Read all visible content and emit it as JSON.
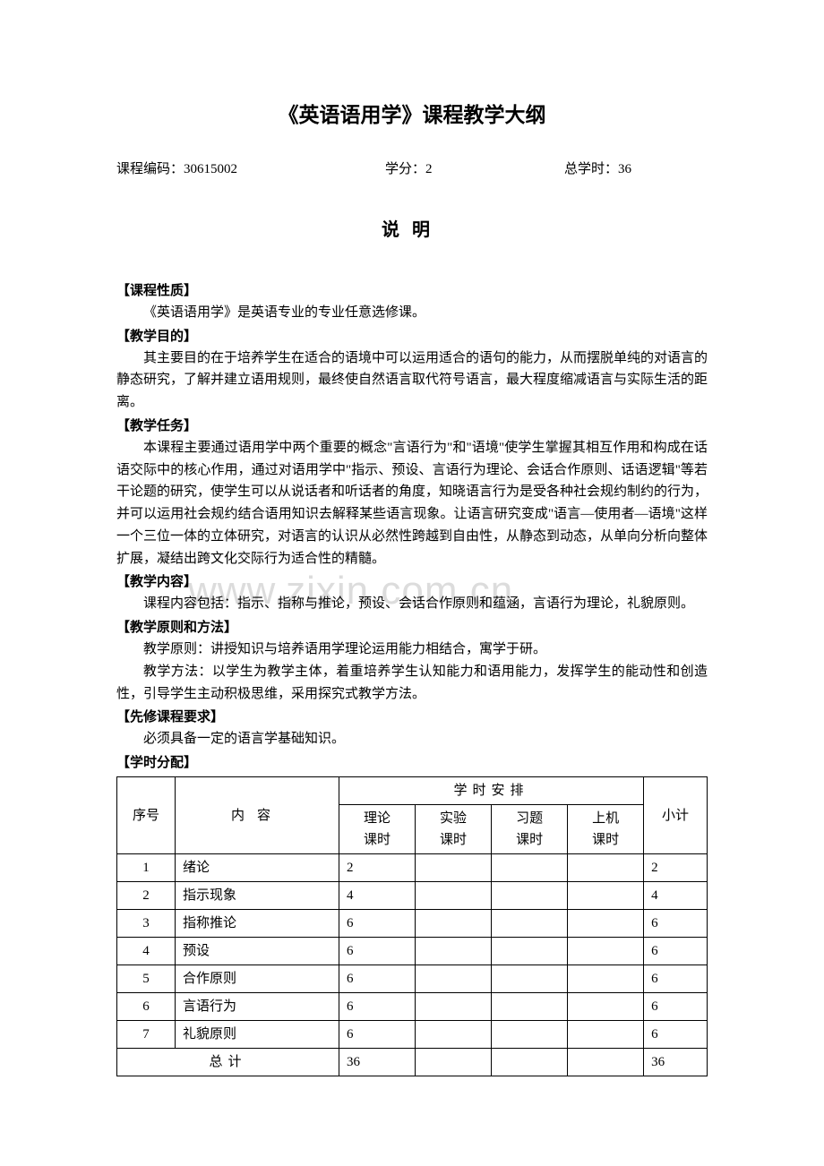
{
  "title": "《英语语用学》课程教学大纲",
  "meta": {
    "code_label": "课程编码：",
    "code_value": "30615002",
    "credit_label": "学分：",
    "credit_value": "2",
    "hours_label": "总学时：",
    "hours_value": "36"
  },
  "section_title": "说明",
  "watermark": "www.zixin.com.cn",
  "sections": [
    {
      "heading": "【课程性质】",
      "paragraphs": [
        "《英语语用学》是英语专业的专业任意选修课。"
      ]
    },
    {
      "heading": "【教学目的】",
      "paragraphs": [
        "其主要目的在于培养学生在适合的语境中可以运用适合的语句的能力，从而摆脱单纯的对语言的静态研究，了解并建立语用规则，最终使自然语言取代符号语言，最大程度缩减语言与实际生活的距离。"
      ]
    },
    {
      "heading": "【教学任务】",
      "paragraphs": [
        "本课程主要通过语用学中两个重要的概念\"言语行为\"和\"语境\"使学生掌握其相互作用和构成在话语交际中的核心作用，通过对语用学中\"指示、预设、言语行为理论、会话合作原则、话语逻辑\"等若干论题的研究，使学生可以从说话者和听话者的角度，知晓语言行为是受各种社会规约制约的行为，并可以运用社会规约结合语用知识去解释某些语言现象。让语言研究变成\"语言—使用者—语境\"这样一个三位一体的立体研究，对语言的认识从必然性跨越到自由性，从静态到动态，从单向分析向整体扩展，凝结出跨文化交际行为适合性的精髓。"
      ]
    },
    {
      "heading": "【教学内容】",
      "paragraphs": [
        "课程内容包括：指示、指称与推论，预设、会话合作原则和蕴涵，言语行为理论，礼貌原则。"
      ]
    },
    {
      "heading": "【教学原则和方法】",
      "paragraphs": [
        "教学原则：讲授知识与培养语用学理论运用能力相结合，寓学于研。",
        "教学方法：以学生为教学主体，着重培养学生认知能力和语用能力，发挥学生的能动性和创造性，引导学生主动积极思维，采用探究式教学方法。"
      ]
    },
    {
      "heading": "【先修课程要求】",
      "paragraphs": [
        "必须具备一定的语言学基础知识。"
      ]
    },
    {
      "heading": "【学时分配】",
      "paragraphs": []
    }
  ],
  "table": {
    "header": {
      "seq": "序号",
      "content": "内容",
      "schedule": "学时安排",
      "subtotal": "小计",
      "sub_cols": [
        "理论课时",
        "实验课时",
        "习题课时",
        "上机课时"
      ]
    },
    "rows": [
      {
        "seq": "1",
        "content": "绪论",
        "theory": "2",
        "exp": "",
        "ex": "",
        "pc": "",
        "total": "2"
      },
      {
        "seq": "2",
        "content": "指示现象",
        "theory": "4",
        "exp": "",
        "ex": "",
        "pc": "",
        "total": "4"
      },
      {
        "seq": "3",
        "content": "指称推论",
        "theory": "6",
        "exp": "",
        "ex": "",
        "pc": "",
        "total": "6"
      },
      {
        "seq": "4",
        "content": "预设",
        "theory": "6",
        "exp": "",
        "ex": "",
        "pc": "",
        "total": "6"
      },
      {
        "seq": "5",
        "content": "合作原则",
        "theory": "6",
        "exp": "",
        "ex": "",
        "pc": "",
        "total": "6"
      },
      {
        "seq": "6",
        "content": "言语行为",
        "theory": "6",
        "exp": "",
        "ex": "",
        "pc": "",
        "total": "6"
      },
      {
        "seq": "7",
        "content": "礼貌原则",
        "theory": "6",
        "exp": "",
        "ex": "",
        "pc": "",
        "total": "6"
      }
    ],
    "footer": {
      "label": "总计",
      "theory": "36",
      "exp": "",
      "ex": "",
      "pc": "",
      "total": "36"
    }
  }
}
